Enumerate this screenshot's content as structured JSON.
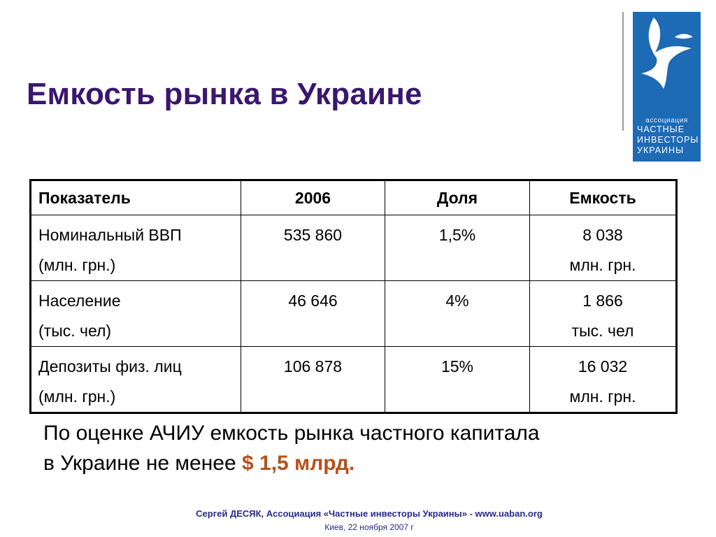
{
  "slide": {
    "title": "Емкость рынка в Украине"
  },
  "logo": {
    "assoc": "ассоциация",
    "name_lines": [
      "ЧАСТНЫЕ",
      "ИНВЕСТОРЫ",
      "УКРАИНЫ"
    ],
    "bg_color": "#1d6ab5"
  },
  "table": {
    "headers": [
      "Показатель",
      "2006",
      "Доля",
      "Емкость"
    ],
    "rows": [
      {
        "indicator": [
          "Номинальный ВВП",
          "(млн. грн.)"
        ],
        "year2006": "535 860",
        "share": "1,5%",
        "capacity": [
          "8 038",
          "млн. грн."
        ]
      },
      {
        "indicator": [
          "Население",
          "(тыс. чел)"
        ],
        "year2006": "46 646",
        "share": "4%",
        "capacity": [
          "1 866",
          "тыс. чел"
        ]
      },
      {
        "indicator": [
          "Депозиты физ. лиц",
          "(млн. грн.)"
        ],
        "year2006": "106 878",
        "share": "15%",
        "capacity": [
          "16 032",
          "млн. грн."
        ]
      }
    ]
  },
  "conclusion": {
    "line1": "По оценке АЧИУ емкость рынка частного капитала",
    "line2_prefix": "в Украине не менее ",
    "amount": "$ 1,5 млрд.",
    "amount_color": "#b3521b"
  },
  "footer": {
    "line1": "Сергей ДЕСЯК, Ассоциация «Частные инвесторы Украины» -  www.uaban.org",
    "line2": "Киев,  22 ноября 2007 г"
  },
  "colors": {
    "title": "#3b1670",
    "footer": "#2a2a8a"
  }
}
